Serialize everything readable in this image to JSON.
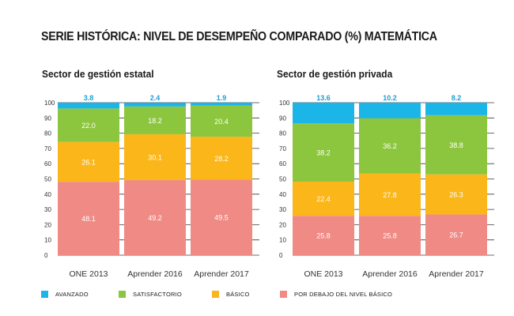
{
  "title": {
    "main": "SERIE HISTÓRICA: NIVEL DE DESEMPEÑO COMPARADO (%) ",
    "accent": "MATEMÁTICA"
  },
  "colors": {
    "avanzado": "#1cb5e8",
    "satisfactorio": "#8cc63f",
    "basico": "#fbb61a",
    "debajo": "#f08a85",
    "axis": "#333333",
    "label_text": "#333333"
  },
  "chart_data": [
    {
      "type": "bar",
      "stacked": true,
      "title": "Sector de gestión estatal",
      "categories": [
        "ONE 2013",
        "Aprender 2016",
        "Aprender 2017"
      ],
      "series": [
        {
          "name": "POR DEBAJO DEL NIVEL BÁSICO",
          "key": "debajo",
          "values": [
            48.1,
            49.2,
            49.5
          ]
        },
        {
          "name": "BÁSICO",
          "key": "basico",
          "values": [
            26.1,
            30.1,
            28.2
          ]
        },
        {
          "name": "SATISFACTORIO",
          "key": "satisfactorio",
          "values": [
            22.0,
            18.2,
            20.4
          ]
        },
        {
          "name": "AVANZADO",
          "key": "avanzado",
          "values": [
            3.8,
            2.4,
            1.9
          ]
        }
      ],
      "ylim": [
        0,
        100
      ],
      "yticks": [
        "0",
        "10",
        "20",
        "30",
        "40",
        "50",
        "60",
        "70",
        "80",
        "90",
        "100"
      ],
      "grid": true
    },
    {
      "type": "bar",
      "stacked": true,
      "title": "Sector de gestión privada",
      "categories": [
        "ONE 2013",
        "Aprender 2016",
        "Aprender 2017"
      ],
      "series": [
        {
          "name": "POR DEBAJO DEL NIVEL BÁSICO",
          "key": "debajo",
          "values": [
            25.8,
            25.8,
            26.7
          ]
        },
        {
          "name": "BÁSICO",
          "key": "basico",
          "values": [
            22.4,
            27.8,
            26.3
          ]
        },
        {
          "name": "SATISFACTORIO",
          "key": "satisfactorio",
          "values": [
            38.2,
            36.2,
            38.8
          ]
        },
        {
          "name": "AVANZADO",
          "key": "avanzado",
          "values": [
            13.6,
            10.2,
            8.2
          ]
        }
      ],
      "ylim": [
        0,
        100
      ],
      "yticks": [
        "0",
        "10",
        "20",
        "30",
        "40",
        "50",
        "60",
        "70",
        "80",
        "90",
        "100"
      ],
      "grid": true
    }
  ],
  "legend": [
    {
      "key": "avanzado",
      "label": "AVANZADO"
    },
    {
      "key": "satisfactorio",
      "label": "SATISFACTORIO"
    },
    {
      "key": "basico",
      "label": "BÁSICO"
    },
    {
      "key": "debajo",
      "label": "POR DEBAJO DEL NIVEL BÁSICO"
    }
  ]
}
